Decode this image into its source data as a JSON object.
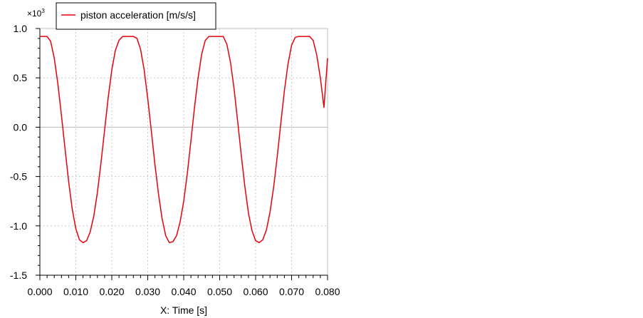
{
  "chart_data": {
    "type": "line",
    "multiplier": "×10",
    "multiplier_exponent": "3",
    "xlabel": "X: Time [s]",
    "ylabel": "",
    "xlim": [
      0.0,
      0.08
    ],
    "ylim": [
      -1.5,
      1.0
    ],
    "x_ticks": [
      "0.000",
      "0.010",
      "0.020",
      "0.030",
      "0.040",
      "0.050",
      "0.060",
      "0.070",
      "0.080"
    ],
    "y_ticks": [
      "1.0",
      "0.5",
      "0.0",
      "-0.5",
      "-1.0",
      "-1.5"
    ],
    "x_tick_values": [
      0.0,
      0.01,
      0.02,
      0.03,
      0.04,
      0.05,
      0.06,
      0.07,
      0.08
    ],
    "y_tick_values": [
      1.0,
      0.5,
      0.0,
      -0.5,
      -1.0,
      -1.5
    ],
    "grid": true,
    "legend_placement": "top-left",
    "series": [
      {
        "name": "piston acceleration [m/s/s]",
        "color": "#e8000b",
        "x": [
          0.0,
          0.002,
          0.003,
          0.004,
          0.005,
          0.006,
          0.007,
          0.008,
          0.009,
          0.01,
          0.011,
          0.012,
          0.013,
          0.014,
          0.015,
          0.016,
          0.017,
          0.018,
          0.019,
          0.02,
          0.021,
          0.022,
          0.023,
          0.024,
          0.025,
          0.026,
          0.027,
          0.028,
          0.029,
          0.03,
          0.031,
          0.032,
          0.033,
          0.034,
          0.035,
          0.036,
          0.037,
          0.038,
          0.039,
          0.04,
          0.041,
          0.042,
          0.043,
          0.044,
          0.045,
          0.046,
          0.047,
          0.048,
          0.049,
          0.05,
          0.051,
          0.052,
          0.053,
          0.054,
          0.055,
          0.056,
          0.057,
          0.058,
          0.059,
          0.06,
          0.061,
          0.062,
          0.063,
          0.064,
          0.065,
          0.066,
          0.067,
          0.068,
          0.069,
          0.07,
          0.071,
          0.072,
          0.073,
          0.074,
          0.075,
          0.076,
          0.077,
          0.078,
          0.079,
          0.08
        ],
        "y": [
          0.92,
          0.92,
          0.87,
          0.7,
          0.44,
          0.12,
          -0.22,
          -0.55,
          -0.83,
          -1.03,
          -1.14,
          -1.17,
          -1.15,
          -1.06,
          -0.9,
          -0.66,
          -0.36,
          -0.03,
          0.3,
          0.58,
          0.78,
          0.88,
          0.92,
          0.92,
          0.92,
          0.92,
          0.9,
          0.79,
          0.58,
          0.29,
          -0.04,
          -0.38,
          -0.68,
          -0.93,
          -1.1,
          -1.17,
          -1.16,
          -1.1,
          -0.96,
          -0.75,
          -0.47,
          -0.14,
          0.2,
          0.5,
          0.74,
          0.88,
          0.92,
          0.92,
          0.92,
          0.92,
          0.92,
          0.84,
          0.66,
          0.39,
          0.06,
          -0.28,
          -0.6,
          -0.87,
          -1.05,
          -1.15,
          -1.17,
          -1.14,
          -1.04,
          -0.86,
          -0.61,
          -0.3,
          0.04,
          0.37,
          0.64,
          0.83,
          0.91,
          0.92,
          0.92,
          0.92,
          0.92,
          0.88,
          0.73,
          0.5,
          0.2,
          0.7
        ]
      }
    ]
  }
}
